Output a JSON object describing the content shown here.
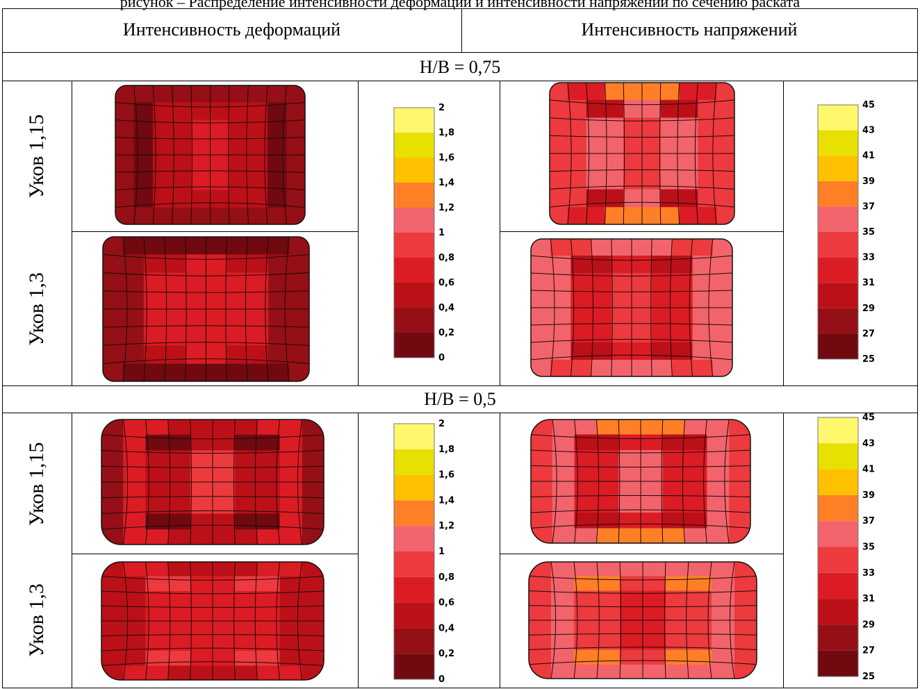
{
  "caption": "рисунок – Распределение интенсивности деформаций и интенсивности напряжений по сечению раската",
  "headers": {
    "strain": "Интенсивность деформаций",
    "stress": "Интенсивность напряжений"
  },
  "sections": [
    {
      "title": "H/B = 0,75",
      "rows": [
        {
          "label": "Уков 1,15"
        },
        {
          "label": "Уков 1,3"
        }
      ]
    },
    {
      "title": "H/B = 0,5",
      "rows": [
        {
          "label": "Уков 1,15"
        },
        {
          "label": "Уков 1,3"
        }
      ]
    }
  ],
  "strain_scale": {
    "ticks": [
      "2",
      "1,8",
      "1,6",
      "1,4",
      "1,2",
      "1",
      "0,8",
      "0,6",
      "0,4",
      "0,2",
      "0"
    ],
    "colors": [
      "#fff86c",
      "#e8e000",
      "#ffc000",
      "#ff7f27",
      "#f2646c",
      "#ec3a3e",
      "#dc1c24",
      "#bc1018",
      "#941016",
      "#700a10"
    ]
  },
  "stress_scale": {
    "ticks": [
      "45",
      "43",
      "41",
      "39",
      "37",
      "35",
      "33",
      "31",
      "29",
      "27",
      "25"
    ],
    "colors": [
      "#fff86c",
      "#e8e000",
      "#ffc000",
      "#ff7f27",
      "#f2646c",
      "#ec3a3e",
      "#dc1c24",
      "#bc1018",
      "#941016",
      "#700a10"
    ]
  }
}
